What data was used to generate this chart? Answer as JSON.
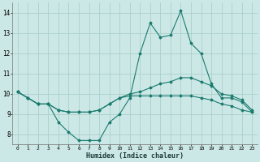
{
  "xlabel": "Humidex (Indice chaleur)",
  "ylabel": "",
  "background_color": "#cce8e6",
  "grid_color": "#aacfcc",
  "line_color": "#1a7a6e",
  "x": [
    0,
    1,
    2,
    3,
    4,
    5,
    6,
    7,
    8,
    9,
    10,
    11,
    12,
    13,
    14,
    15,
    16,
    17,
    18,
    19,
    20,
    21,
    22,
    23
  ],
  "line1": [
    10.1,
    9.8,
    9.5,
    9.5,
    8.6,
    8.1,
    7.7,
    7.7,
    7.7,
    8.6,
    9.0,
    9.8,
    12.0,
    13.5,
    12.8,
    12.9,
    14.1,
    12.5,
    12.0,
    10.5,
    9.8,
    9.8,
    9.6,
    9.1
  ],
  "line2": [
    10.1,
    9.8,
    9.5,
    9.5,
    9.2,
    9.1,
    9.1,
    9.1,
    9.2,
    9.5,
    9.8,
    10.0,
    10.1,
    10.3,
    10.5,
    10.6,
    10.8,
    10.8,
    10.6,
    10.4,
    10.0,
    9.9,
    9.7,
    9.2
  ],
  "line3": [
    10.1,
    9.8,
    9.5,
    9.5,
    9.2,
    9.1,
    9.1,
    9.1,
    9.2,
    9.5,
    9.8,
    9.9,
    9.9,
    9.9,
    9.9,
    9.9,
    9.9,
    9.9,
    9.8,
    9.7,
    9.5,
    9.4,
    9.2,
    9.1
  ],
  "xlim": [
    -0.5,
    23.5
  ],
  "ylim": [
    7.5,
    14.5
  ],
  "yticks": [
    8,
    9,
    10,
    11,
    12,
    13,
    14
  ],
  "xticks": [
    0,
    1,
    2,
    3,
    4,
    5,
    6,
    7,
    8,
    9,
    10,
    11,
    12,
    13,
    14,
    15,
    16,
    17,
    18,
    19,
    20,
    21,
    22,
    23
  ]
}
